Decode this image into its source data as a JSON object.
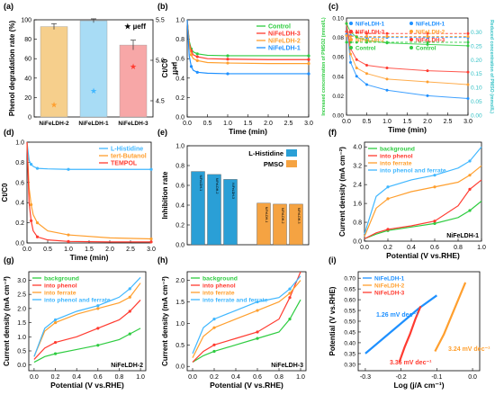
{
  "figure": {
    "colors": {
      "axis": "#000000",
      "grid": "#e6e6e6",
      "green": "#2ecc40",
      "red": "#ff3b30",
      "orange": "#ff9f2e",
      "blue": "#1e90ff",
      "lightblue": "#40b7ff",
      "beige": "#f6cf8c",
      "pink": "#f7a7a7",
      "teal": "#35c2c6"
    }
  },
  "chart_data": [
    {
      "panel": "(a)",
      "type": "bar",
      "categories": [
        "NiFeLDH-2",
        "NiFeLDH-1",
        "NiFeLDH-3"
      ],
      "series": [
        {
          "name": "Phenol degradation rate (%)",
          "values": [
            93,
            99,
            74
          ],
          "errors": [
            3,
            2,
            5
          ]
        },
        {
          "name": "µeff",
          "values": [
            4.45,
            4.62,
            4.92
          ],
          "axis": "right"
        }
      ],
      "ylabel": "Phenol degradation rate (%)",
      "y2label": "µeff",
      "ylim": [
        0,
        100
      ],
      "y2lim": [
        4.3,
        5.5
      ],
      "yticks": [
        0,
        20,
        40,
        60,
        80,
        100
      ],
      "y2ticks": [
        4.5,
        5.0,
        5.5
      ],
      "legend": "µeff"
    },
    {
      "panel": "(b)",
      "type": "line",
      "xlabel": "Time (min)",
      "ylabel": "Ct/C0",
      "xlim": [
        0,
        3
      ],
      "ylim": [
        0,
        1
      ],
      "xticks": [
        0.0,
        0.5,
        1.0,
        1.5,
        2.0,
        2.5,
        3.0
      ],
      "yticks": [
        0.0,
        0.2,
        0.4,
        0.6,
        0.8,
        1.0
      ],
      "x": [
        0.0,
        0.05,
        0.1,
        0.15,
        0.25,
        0.5,
        1.0,
        2.0,
        3.0
      ],
      "series": [
        {
          "name": "Control",
          "values": [
            1.0,
            0.78,
            0.7,
            0.67,
            0.65,
            0.635,
            0.63,
            0.63,
            0.63
          ]
        },
        {
          "name": "NiFeLDH-3",
          "values": [
            1.0,
            0.76,
            0.68,
            0.64,
            0.62,
            0.6,
            0.595,
            0.59,
            0.59
          ]
        },
        {
          "name": "NiFeLDH-2",
          "values": [
            1.0,
            0.74,
            0.64,
            0.6,
            0.58,
            0.56,
            0.555,
            0.55,
            0.55
          ]
        },
        {
          "name": "NiFeLDH-1",
          "values": [
            1.0,
            0.63,
            0.52,
            0.48,
            0.46,
            0.45,
            0.445,
            0.445,
            0.445
          ]
        }
      ],
      "legend": "top-right"
    },
    {
      "panel": "(c)",
      "type": "line",
      "xlabel": "Time (min)",
      "ylabel": "Increased concentration of PMSO2 (mmol/L)",
      "y2label": "Reduced concentration of PMSO (mmol/L)",
      "xlim": [
        0,
        3
      ],
      "ylim": [
        0,
        0.1
      ],
      "y2lim": [
        0,
        0.35
      ],
      "xticks": [
        0.0,
        0.5,
        1.0,
        1.5,
        2.0,
        2.5,
        3.0
      ],
      "yticks": [
        0.0,
        0.02,
        0.04,
        0.06,
        0.08,
        0.1
      ],
      "y2ticks": [
        0.0,
        0.05,
        0.1,
        0.15,
        0.2,
        0.25,
        0.3
      ],
      "x": [
        0.0,
        0.1,
        0.25,
        0.5,
        1.0,
        2.0,
        3.0
      ],
      "series": [
        {
          "name": "NiFeLDH-1",
          "axis": "left",
          "values": [
            0.083,
            0.082,
            0.081,
            0.08,
            0.08,
            0.08,
            0.08
          ]
        },
        {
          "name": "NiFeLDH-3",
          "axis": "left",
          "values": [
            0.086,
            0.085,
            0.085,
            0.084,
            0.084,
            0.084,
            0.084
          ]
        },
        {
          "name": "NiFeLDH-2",
          "axis": "left",
          "values": [
            0.082,
            0.081,
            0.081,
            0.081,
            0.081,
            0.081,
            0.081
          ]
        },
        {
          "name": "Control",
          "axis": "left",
          "values": [
            0.075,
            0.075,
            0.075,
            0.075,
            0.075,
            0.075,
            0.075
          ]
        },
        {
          "name": "NiFeLDH-1",
          "axis": "right",
          "values": [
            0.33,
            0.19,
            0.14,
            0.11,
            0.09,
            0.07,
            0.06
          ]
        },
        {
          "name": "NiFeLDH-2",
          "axis": "right",
          "values": [
            0.33,
            0.22,
            0.17,
            0.15,
            0.13,
            0.12,
            0.11
          ]
        },
        {
          "name": "NiFeLDH-3",
          "axis": "right",
          "values": [
            0.33,
            0.24,
            0.2,
            0.18,
            0.17,
            0.16,
            0.155
          ]
        },
        {
          "name": "Control",
          "axis": "right",
          "values": [
            0.33,
            0.3,
            0.28,
            0.27,
            0.26,
            0.255,
            0.25
          ]
        }
      ],
      "legend": "top"
    },
    {
      "panel": "(d)",
      "type": "line",
      "xlabel": "Time (min)",
      "ylabel": "Ct/C0",
      "xlim": [
        0,
        3
      ],
      "ylim": [
        0,
        1
      ],
      "xticks": [
        0.0,
        0.5,
        1.0,
        1.5,
        2.0,
        2.5,
        3.0
      ],
      "yticks": [
        0.0,
        0.2,
        0.4,
        0.6,
        0.8,
        1.0
      ],
      "x": [
        0.0,
        0.05,
        0.1,
        0.15,
        0.25,
        0.5,
        1.0,
        2.0,
        3.0
      ],
      "series": [
        {
          "name": "L-Histidine",
          "values": [
            1.0,
            0.82,
            0.78,
            0.76,
            0.74,
            0.735,
            0.73,
            0.73,
            0.73
          ]
        },
        {
          "name": "tert-Butanol",
          "values": [
            1.0,
            0.55,
            0.38,
            0.28,
            0.2,
            0.12,
            0.08,
            0.05,
            0.04
          ]
        },
        {
          "name": "TEMPOL",
          "values": [
            1.0,
            0.4,
            0.22,
            0.12,
            0.06,
            0.03,
            0.015,
            0.01,
            0.01
          ]
        }
      ],
      "legend": "top-right"
    },
    {
      "panel": "(e)",
      "type": "bar",
      "ylabel": "Inhibition rate",
      "ylim": [
        0,
        1
      ],
      "yticks": [
        0.0,
        0.2,
        0.4,
        0.6,
        0.8,
        1.0
      ],
      "categories": [
        "NiFeLDH-1",
        "NiFeLDH-2",
        "NiFeLDH-3",
        "NiFeLDH-1",
        "NiFeLDH-2",
        "NiFeLDH-3"
      ],
      "series": [
        {
          "name": "L-Histidine",
          "values": [
            0.74,
            0.71,
            0.66,
            null,
            null,
            null
          ]
        },
        {
          "name": "PMSO",
          "values": [
            null,
            null,
            null,
            0.42,
            0.41,
            0.41
          ]
        }
      ],
      "legend": "top-right"
    },
    {
      "panel": "(f)",
      "type": "line",
      "xlabel": "Potential (V vs.RHE)",
      "ylabel": "Current density (mA cm⁻²)",
      "annotation": "NiFeLDH-1",
      "xlim": [
        0,
        1
      ],
      "ylim": [
        0,
        4.2
      ],
      "xticks": [
        0.0,
        0.2,
        0.4,
        0.6,
        0.8,
        1.0
      ],
      "yticks": [
        0.0,
        0.8,
        1.6,
        2.4,
        3.2,
        4.0
      ],
      "x": [
        0.0,
        0.1,
        0.2,
        0.4,
        0.6,
        0.8,
        0.9,
        1.0
      ],
      "series": [
        {
          "name": "background",
          "values": [
            0.1,
            0.3,
            0.45,
            0.6,
            0.75,
            1.0,
            1.3,
            1.7
          ]
        },
        {
          "name": "into phenol",
          "values": [
            0.1,
            0.35,
            0.5,
            0.65,
            0.85,
            1.5,
            2.2,
            2.6
          ]
        },
        {
          "name": "into ferrate",
          "values": [
            0.2,
            1.4,
            1.8,
            2.1,
            2.3,
            2.5,
            2.8,
            3.2
          ]
        },
        {
          "name": "into phenol and ferrate",
          "values": [
            0.3,
            1.9,
            2.3,
            2.6,
            2.8,
            3.1,
            3.4,
            4.0
          ]
        }
      ],
      "legend": "top-left"
    },
    {
      "panel": "(g)",
      "type": "line",
      "xlabel": "Potential (V vs.RHE)",
      "ylabel": "Current density (mA cm⁻²)",
      "annotation": "NiFeLDH-2",
      "xlim": [
        -0.05,
        1.05
      ],
      "ylim": [
        -0.2,
        3.3
      ],
      "xticks": [
        0.0,
        0.2,
        0.4,
        0.6,
        0.8,
        1.0
      ],
      "yticks": [
        0.0,
        0.5,
        1.0,
        1.5,
        2.0,
        2.5,
        3.0
      ],
      "x": [
        0.0,
        0.1,
        0.2,
        0.4,
        0.6,
        0.8,
        0.9,
        1.0
      ],
      "series": [
        {
          "name": "background",
          "values": [
            0.1,
            0.3,
            0.4,
            0.55,
            0.7,
            0.9,
            1.1,
            1.3
          ]
        },
        {
          "name": "into phenol",
          "values": [
            0.2,
            0.6,
            0.8,
            1.0,
            1.3,
            1.6,
            1.9,
            2.3
          ]
        },
        {
          "name": "into ferrate",
          "values": [
            0.3,
            1.2,
            1.5,
            1.8,
            2.0,
            2.2,
            2.4,
            2.9
          ]
        },
        {
          "name": "into phenol and ferrate",
          "values": [
            0.3,
            1.3,
            1.6,
            1.9,
            2.1,
            2.4,
            2.7,
            3.1
          ]
        }
      ],
      "legend": "top-left"
    },
    {
      "panel": "(h)",
      "type": "line",
      "xlabel": "Potential (V vs.RHE)",
      "ylabel": "Current density (mA cm⁻²)",
      "annotation": "NiFeLDH-3",
      "xlim": [
        -0.05,
        1.05
      ],
      "ylim": [
        -0.1,
        2.2
      ],
      "xticks": [
        0.0,
        0.2,
        0.4,
        0.6,
        0.8,
        1.0
      ],
      "yticks": [
        0.0,
        0.5,
        1.0,
        1.5,
        2.0
      ],
      "x": [
        0.0,
        0.1,
        0.2,
        0.4,
        0.6,
        0.8,
        0.9,
        1.0
      ],
      "series": [
        {
          "name": "background",
          "values": [
            0.1,
            0.25,
            0.35,
            0.5,
            0.65,
            0.8,
            1.1,
            1.55
          ]
        },
        {
          "name": "into phenol",
          "values": [
            0.1,
            0.35,
            0.5,
            0.65,
            0.8,
            1.1,
            1.6,
            2.2
          ]
        },
        {
          "name": "into ferrate",
          "values": [
            0.2,
            0.7,
            0.9,
            1.1,
            1.3,
            1.5,
            1.7,
            2.0
          ]
        },
        {
          "name": "into ferrate and ferrate",
          "values": [
            0.3,
            0.9,
            1.1,
            1.3,
            1.5,
            1.6,
            1.8,
            2.1
          ]
        }
      ],
      "legend": "top-left"
    },
    {
      "panel": "(i)",
      "type": "line",
      "xlabel": "Log (j/A cm⁻¹)",
      "ylabel": "Potential (V vs.RHE)",
      "xlim": [
        -0.32,
        0.02
      ],
      "ylim": [
        0.27,
        0.73
      ],
      "xticks": [
        -0.3,
        -0.2,
        -0.1,
        0.0
      ],
      "yticks": [
        0.3,
        0.35,
        0.4,
        0.45,
        0.5,
        0.55,
        0.6,
        0.65,
        0.7
      ],
      "series": [
        {
          "name": "NiFeLDH-1",
          "x": [
            -0.3,
            -0.25,
            -0.2,
            -0.15,
            -0.1
          ],
          "values": [
            0.35,
            0.42,
            0.49,
            0.56,
            0.62
          ]
        },
        {
          "name": "NiFeLDH-2",
          "x": [
            -0.105,
            -0.08,
            -0.06,
            -0.04,
            -0.02
          ],
          "values": [
            0.36,
            0.44,
            0.52,
            0.6,
            0.68
          ]
        },
        {
          "name": "NiFeLDH-3",
          "x": [
            -0.205,
            -0.19,
            -0.175,
            -0.16,
            -0.145
          ],
          "values": [
            0.31,
            0.38,
            0.44,
            0.51,
            0.57
          ]
        }
      ],
      "annotations": [
        "1.26 mV dec⁻¹",
        "3.24 mV dec⁻¹",
        "3.36 mV dec⁻¹"
      ],
      "legend": "top-left"
    }
  ]
}
